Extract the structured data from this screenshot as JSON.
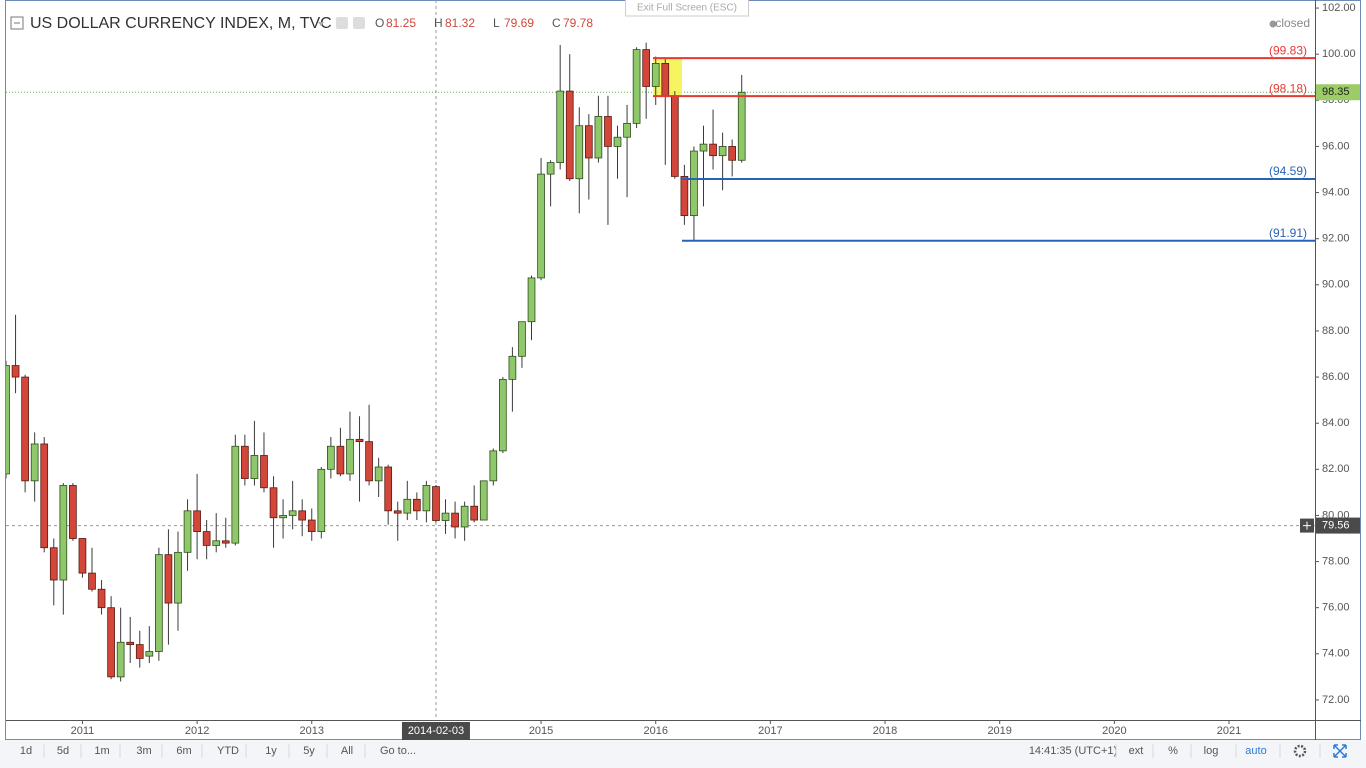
{
  "chart_data": {
    "type": "candlestick",
    "title": "US DOLLAR CURRENCY INDEX, M, TVC",
    "legend": [
      {
        "key": "O",
        "value": 81.25
      },
      {
        "key": "H",
        "value": 81.32
      },
      {
        "key": "L",
        "value": 79.69
      },
      {
        "key": "C",
        "value": 79.78
      }
    ],
    "status": "closed",
    "overlay": "Exit Full Screen (ESC)",
    "x": [
      "2010-05",
      "2010-06",
      "2010-07",
      "2010-08",
      "2010-09",
      "2010-10",
      "2010-11",
      "2010-12",
      "2011-01",
      "2011-02",
      "2011-03",
      "2011-04",
      "2011-05",
      "2011-06",
      "2011-07",
      "2011-08",
      "2011-09",
      "2011-10",
      "2011-11",
      "2011-12",
      "2012-01",
      "2012-02",
      "2012-03",
      "2012-04",
      "2012-05",
      "2012-06",
      "2012-07",
      "2012-08",
      "2012-09",
      "2012-10",
      "2012-11",
      "2012-12",
      "2013-01",
      "2013-02",
      "2013-03",
      "2013-04",
      "2013-05",
      "2013-06",
      "2013-07",
      "2013-08",
      "2013-09",
      "2013-10",
      "2013-11",
      "2013-12",
      "2014-01",
      "2014-02",
      "2014-03",
      "2014-04",
      "2014-05",
      "2014-06",
      "2014-07",
      "2014-08",
      "2014-09",
      "2014-10",
      "2014-11",
      "2014-12",
      "2015-01",
      "2015-02",
      "2015-03",
      "2015-04",
      "2015-05",
      "2015-06",
      "2015-07",
      "2015-08",
      "2015-09",
      "2015-10",
      "2015-11",
      "2015-12",
      "2016-01",
      "2016-02",
      "2016-03",
      "2016-04",
      "2016-05",
      "2016-06",
      "2016-07",
      "2016-08",
      "2016-09",
      "2016-10"
    ],
    "open": [
      81.8,
      86.5,
      86.0,
      81.5,
      83.1,
      78.6,
      77.2,
      81.3,
      79.0,
      77.5,
      76.8,
      76.0,
      73.0,
      74.5,
      74.4,
      73.9,
      74.1,
      78.3,
      76.2,
      78.4,
      80.2,
      79.3,
      78.7,
      78.9,
      78.8,
      83.0,
      81.6,
      82.6,
      81.2,
      79.9,
      80.0,
      80.2,
      79.8,
      79.3,
      82.0,
      83.0,
      81.8,
      83.3,
      83.2,
      81.5,
      82.1,
      80.2,
      80.1,
      80.7,
      80.2,
      81.25,
      79.78,
      80.1,
      79.5,
      80.4,
      79.8,
      81.5,
      82.8,
      85.9,
      86.9,
      88.4,
      90.3,
      94.8,
      95.3,
      98.4,
      94.6,
      96.9,
      95.5,
      97.3,
      96.0,
      96.4,
      97.0,
      100.2,
      98.6,
      99.6,
      98.2,
      94.7,
      93.0,
      95.8,
      96.1,
      95.6,
      96.0,
      95.4
    ],
    "high": [
      86.7,
      88.7,
      86.1,
      83.6,
      83.4,
      79.0,
      81.4,
      81.4,
      79.0,
      78.6,
      77.2,
      76.5,
      76.0,
      75.6,
      75.0,
      75.2,
      78.6,
      79.4,
      79.3,
      80.7,
      81.8,
      79.8,
      80.1,
      79.9,
      83.5,
      83.5,
      84.1,
      83.6,
      81.7,
      80.7,
      81.5,
      80.7,
      80.3,
      82.1,
      83.4,
      83.8,
      84.5,
      84.3,
      84.8,
      82.5,
      82.2,
      80.6,
      81.5,
      81.0,
      81.5,
      81.32,
      80.7,
      80.6,
      80.6,
      81.3,
      81.5,
      82.9,
      86.0,
      87.3,
      88.4,
      90.4,
      95.5,
      95.4,
      100.4,
      100.0,
      97.7,
      97.4,
      98.2,
      98.2,
      96.9,
      97.8,
      100.3,
      100.5,
      99.9,
      99.8,
      98.4,
      95.2,
      96.0,
      96.9,
      97.6,
      96.6,
      96.3,
      99.1
    ],
    "low": [
      81.6,
      85.3,
      81.0,
      80.6,
      78.4,
      76.1,
      75.7,
      78.9,
      77.3,
      76.7,
      75.7,
      72.9,
      72.8,
      73.6,
      73.4,
      73.6,
      73.7,
      74.4,
      75.0,
      77.6,
      78.1,
      78.1,
      78.4,
      78.6,
      78.7,
      81.3,
      81.3,
      81.0,
      78.6,
      79.0,
      79.4,
      79.1,
      78.9,
      79.0,
      81.6,
      81.7,
      81.5,
      80.6,
      81.3,
      80.8,
      79.6,
      78.9,
      79.8,
      79.8,
      79.7,
      79.69,
      79.2,
      79.0,
      78.9,
      79.7,
      79.8,
      81.3,
      82.7,
      84.5,
      86.4,
      87.6,
      90.2,
      93.4,
      95.0,
      94.5,
      93.1,
      93.7,
      95.3,
      92.6,
      94.6,
      93.8,
      96.8,
      97.2,
      97.8,
      95.2,
      94.6,
      92.6,
      91.9,
      93.4,
      95.0,
      94.1,
      94.7,
      95.3
    ],
    "close": [
      86.5,
      86.0,
      81.5,
      83.1,
      78.6,
      77.2,
      81.3,
      79.0,
      77.5,
      76.8,
      76.0,
      73.0,
      74.5,
      74.4,
      73.8,
      74.1,
      78.3,
      76.2,
      78.4,
      80.2,
      79.3,
      78.7,
      78.9,
      78.8,
      83.0,
      81.6,
      82.6,
      81.2,
      79.9,
      80.0,
      80.2,
      79.8,
      79.3,
      82.0,
      83.0,
      81.8,
      83.3,
      83.2,
      81.5,
      82.1,
      80.2,
      80.1,
      80.7,
      80.2,
      81.3,
      79.78,
      80.1,
      79.5,
      80.4,
      79.8,
      81.5,
      82.8,
      85.9,
      86.9,
      88.4,
      90.3,
      94.8,
      95.3,
      98.4,
      94.6,
      96.9,
      95.5,
      97.3,
      96.0,
      96.4,
      97.0,
      100.2,
      98.6,
      99.6,
      98.2,
      94.7,
      93.0,
      95.8,
      96.1,
      95.6,
      96.0,
      95.4,
      98.35
    ],
    "up_color": "#8fc86a",
    "down_color": "#d2473a",
    "xlim": [
      "2010-05",
      "2021-10"
    ],
    "xticks": [
      {
        "value": "2011-01",
        "label": "2011"
      },
      {
        "value": "2012-01",
        "label": "2012"
      },
      {
        "value": "2013-01",
        "label": "2013"
      },
      {
        "value": "2015-01",
        "label": "2015"
      },
      {
        "value": "2016-01",
        "label": "2016"
      },
      {
        "value": "2017-01",
        "label": "2017"
      },
      {
        "value": "2018-01",
        "label": "2018"
      },
      {
        "value": "2019-01",
        "label": "2019"
      },
      {
        "value": "2020-01",
        "label": "2020"
      },
      {
        "value": "2021-01",
        "label": "2021"
      }
    ],
    "ylim": [
      71.13,
      102.35
    ],
    "yticks": [
      {
        "value": 72,
        "label": "72.00"
      },
      {
        "value": 74,
        "label": "74.00"
      },
      {
        "value": 76,
        "label": "76.00"
      },
      {
        "value": 78,
        "label": "78.00"
      },
      {
        "value": 80,
        "label": "80.00"
      },
      {
        "value": 82,
        "label": "82.00"
      },
      {
        "value": 84,
        "label": "84.00"
      },
      {
        "value": 86,
        "label": "86.00"
      },
      {
        "value": 88,
        "label": "88.00"
      },
      {
        "value": 90,
        "label": "90.00"
      },
      {
        "value": 92,
        "label": "92.00"
      },
      {
        "value": 94,
        "label": "94.00"
      },
      {
        "value": 96,
        "label": "96.00"
      },
      {
        "value": 98,
        "label": "98.00"
      },
      {
        "value": 100,
        "label": "100.00"
      },
      {
        "value": 102,
        "label": "102.00"
      }
    ],
    "levels": [
      {
        "value": 99.83,
        "label": "(99.83)",
        "color": "#e53935"
      },
      {
        "value": 98.18,
        "label": "(98.18)",
        "color": "#e53935"
      },
      {
        "value": 94.59,
        "label": "(94.59)",
        "color": "#2a62b8"
      },
      {
        "value": 91.91,
        "label": "(91.91)",
        "color": "#2a62b8"
      }
    ],
    "last_price": 98.35,
    "crosshair": {
      "x_label": "2014-02-03",
      "y": 79.56
    },
    "toolbar": {
      "ranges": [
        "1d",
        "5d",
        "1m",
        "3m",
        "6m",
        "YTD",
        "1y",
        "5y",
        "All"
      ],
      "goto": "Go to...",
      "time": "14:41:35 (UTC+1)",
      "options": [
        "ext",
        "%",
        "log",
        "auto"
      ]
    }
  }
}
